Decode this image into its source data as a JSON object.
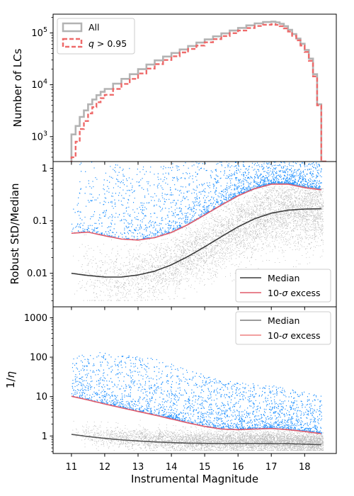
{
  "figure": {
    "xlabel": "Instrumental Magnitude",
    "ylabel_shared": "Robust StD/Median",
    "x_ticks": [
      "11",
      "12",
      "13",
      "14",
      "15",
      "16",
      "17",
      "18"
    ],
    "colors": {
      "all_hist": "#b3b3b3",
      "q_hist": "#ee6a6a",
      "scatter_gray": "#7f7f7f",
      "scatter_blue": "#1e90ff",
      "median_line": "#3a3a3a",
      "excess_line": "#e05a6a"
    }
  },
  "chart_data": [
    {
      "type": "histogram-step",
      "ylabel": "Number of LCs",
      "y_scale": "log",
      "xlim": [
        10.45,
        18.95
      ],
      "ylim": [
        330,
        230000
      ],
      "y_ticks": [
        {
          "value": 1000,
          "base": "10",
          "exp": "3"
        },
        {
          "value": 10000,
          "base": "10",
          "exp": "4"
        },
        {
          "value": 100000,
          "base": "10",
          "exp": "5"
        }
      ],
      "legend": {
        "placement": "top-left",
        "entries": [
          "All",
          "q > 0.95"
        ],
        "q_symbol": "q",
        "q_rest": " > 0.95"
      },
      "series": [
        {
          "name": "All",
          "x": [
            11.0,
            11.125,
            11.25,
            11.375,
            11.5,
            11.625,
            11.75,
            11.875,
            12.0,
            12.25,
            12.5,
            12.75,
            13.0,
            13.25,
            13.5,
            13.75,
            14.0,
            14.25,
            14.5,
            14.75,
            15.0,
            15.25,
            15.5,
            15.75,
            16.0,
            16.25,
            16.5,
            16.75,
            17.0,
            17.125,
            17.25,
            17.375,
            17.5,
            17.625,
            17.75,
            17.875,
            18.0,
            18.125,
            18.25,
            18.375,
            18.5
          ],
          "y": [
            1100,
            1600,
            2400,
            3200,
            4200,
            5200,
            6300,
            7300,
            8300,
            10500,
            13000,
            16000,
            20000,
            24500,
            29500,
            35000,
            41000,
            48000,
            56000,
            65000,
            75000,
            86000,
            98000,
            111000,
            125000,
            140000,
            153000,
            162000,
            165000,
            160000,
            150000,
            135000,
            115000,
            95000,
            78000,
            62000,
            47000,
            32000,
            16000,
            4200,
            330
          ]
        },
        {
          "name": "q > 0.95",
          "x": [
            11.0,
            11.125,
            11.25,
            11.375,
            11.5,
            11.625,
            11.75,
            11.875,
            12.0,
            12.25,
            12.5,
            12.75,
            13.0,
            13.25,
            13.5,
            13.75,
            14.0,
            14.25,
            14.5,
            14.75,
            15.0,
            15.25,
            15.5,
            15.75,
            16.0,
            16.25,
            16.5,
            16.75,
            17.0,
            17.125,
            17.25,
            17.375,
            17.5,
            17.625,
            17.75,
            17.875,
            18.0,
            18.125,
            18.25,
            18.375,
            18.5
          ],
          "y": [
            400,
            800,
            1400,
            2000,
            2800,
            3700,
            4600,
            5500,
            6400,
            8300,
            10400,
            13000,
            16500,
            20500,
            25000,
            30000,
            35500,
            42000,
            49000,
            57000,
            66000,
            76000,
            87000,
            99000,
            111000,
            124000,
            136000,
            144000,
            147000,
            143000,
            135000,
            122000,
            106000,
            88000,
            72000,
            57000,
            43000,
            29000,
            14500,
            4000,
            330
          ]
        }
      ]
    },
    {
      "type": "scatter",
      "ylabel": "Robust StD/Median",
      "y_scale": "log",
      "xlim": [
        10.45,
        18.95
      ],
      "ylim": [
        0.0023,
        1.35
      ],
      "y_ticks": [
        {
          "value": 0.01,
          "label": "0.01"
        },
        {
          "value": 0.1,
          "label": "0.1"
        },
        {
          "value": 1,
          "label": "1"
        }
      ],
      "legend": {
        "placement": "bottom-right",
        "entries": [
          "Median",
          "10-σ excess"
        ],
        "sigma_prefix": "10-",
        "sigma_symbol": "σ",
        "sigma_suffix": " excess"
      },
      "series": [
        {
          "name": "Median",
          "x": [
            11,
            11.5,
            12,
            12.5,
            13,
            13.5,
            14,
            14.5,
            15,
            15.5,
            16,
            16.5,
            17,
            17.5,
            18,
            18.5
          ],
          "y": [
            0.01,
            0.0091,
            0.0085,
            0.0085,
            0.0093,
            0.011,
            0.0145,
            0.021,
            0.032,
            0.05,
            0.077,
            0.11,
            0.14,
            0.16,
            0.168,
            0.17
          ]
        },
        {
          "name": "10-σ excess",
          "x": [
            11,
            11.5,
            12,
            12.5,
            13,
            13.5,
            14,
            14.5,
            15,
            15.5,
            16,
            16.5,
            17,
            17.5,
            18,
            18.5
          ],
          "y": [
            0.058,
            0.061,
            0.052,
            0.045,
            0.043,
            0.048,
            0.06,
            0.085,
            0.13,
            0.2,
            0.3,
            0.41,
            0.5,
            0.5,
            0.43,
            0.39
          ]
        }
      ]
    },
    {
      "type": "scatter",
      "ylabel": "1/η",
      "ylabel_prefix": "1/",
      "ylabel_symbol": "η",
      "y_scale": "log",
      "xlim": [
        10.45,
        18.95
      ],
      "ylim": [
        0.36,
        1900
      ],
      "y_ticks": [
        {
          "value": 1,
          "label": "1"
        },
        {
          "value": 10,
          "label": "10"
        },
        {
          "value": 100,
          "label": "100"
        },
        {
          "value": 1000,
          "label": "1000"
        }
      ],
      "legend": {
        "placement": "top-right",
        "entries": [
          "Median",
          "10-σ excess"
        ],
        "sigma_prefix": "10-",
        "sigma_symbol": "σ",
        "sigma_suffix": " excess"
      },
      "series": [
        {
          "name": "Median",
          "x": [
            11,
            11.5,
            12,
            12.5,
            13,
            13.5,
            14,
            14.5,
            15,
            15.5,
            16,
            16.5,
            17,
            17.5,
            18,
            18.5
          ],
          "y": [
            1.1,
            0.97,
            0.87,
            0.8,
            0.75,
            0.71,
            0.68,
            0.66,
            0.65,
            0.645,
            0.645,
            0.645,
            0.645,
            0.64,
            0.62,
            0.6
          ]
        },
        {
          "name": "10-σ excess",
          "x": [
            11,
            11.5,
            12,
            12.5,
            13,
            13.5,
            14,
            14.5,
            15,
            15.5,
            16,
            16.5,
            17,
            17.5,
            18,
            18.5
          ],
          "y": [
            10.2,
            8.2,
            6.5,
            5.2,
            4.2,
            3.4,
            2.7,
            2.15,
            1.75,
            1.5,
            1.45,
            1.5,
            1.55,
            1.45,
            1.3,
            1.15
          ]
        }
      ]
    }
  ]
}
